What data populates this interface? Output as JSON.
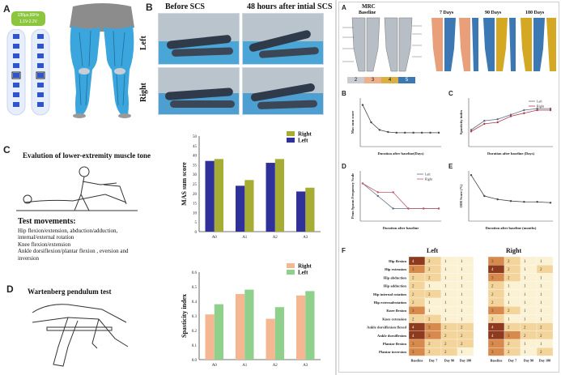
{
  "panels": {
    "a_left": {
      "label": "A",
      "device_text_1": "130µs,60Hz",
      "device_text_2": "1.1V-2.2V"
    },
    "b": {
      "label": "B",
      "before": "Before  SCS",
      "after": "48 hours after intial SCS",
      "left_row": "Left",
      "right_row": "Right"
    },
    "c": {
      "label": "C",
      "title": "Evalution of lower-extremity muscle tone",
      "test_movements_title": "Test movements:",
      "movements": [
        "Hip  flexion/extension, abduction/adduction,",
        "internal/external rotation",
        "Knee  flexion/extension",
        "Ankle dorsiflexion/plantar flexion , eversion and",
        "inversion"
      ]
    },
    "d": {
      "label": "D",
      "title": "Wartenberg pendulum test"
    },
    "right_figure": {
      "label_a": "A",
      "label_b": "B",
      "label_c": "C",
      "label_d": "D",
      "label_e": "E",
      "label_f": "F",
      "mrc_title": "MRC",
      "mrc_times": [
        "Baseline",
        "7 Days",
        "90 Days",
        "180 Days"
      ],
      "mrc_scale": [
        "2",
        "3",
        "4",
        "5"
      ],
      "b_ylabel": "Mas sum score",
      "b_xlabel": "Duration after baseline(Days)",
      "c_ylabel": "Spasticity index",
      "c_xlabel": "Duration after baseline (Days)",
      "c_legend": [
        "Left",
        "Right"
      ],
      "d_ylabel": "Penn Spasm Frequency Scale",
      "d_xlabel": "Duration after baseline",
      "d_legend": [
        "Left",
        "Right"
      ],
      "e_ylabel": "ODI Score (%)",
      "e_xlabel": "Duration after baseline (months)",
      "f_left": "Left",
      "f_right": "Right",
      "f_rows": [
        "Hip flexion",
        "Hip extension",
        "Hip abduction",
        "Hip adduction",
        "Hip internal rotation",
        "Hip externalrotation",
        "Knee flexion",
        "Knee extension",
        "Ankle dorsiflexion flexed",
        "Ankle dorsiflexion",
        "Plantar flexion",
        "Plantar inversion"
      ],
      "f_cols": [
        "Baseline",
        "Day 7",
        "Day 90",
        "Day 180"
      ],
      "f_left_values": [
        [
          4,
          2,
          1,
          1
        ],
        [
          3,
          2,
          1,
          1
        ],
        [
          2,
          2,
          1,
          1
        ],
        [
          2,
          1,
          1,
          1
        ],
        [
          2,
          2,
          1,
          1
        ],
        [
          2,
          1,
          1,
          1
        ],
        [
          3,
          1,
          1,
          1
        ],
        [
          2,
          2,
          1,
          1
        ],
        [
          4,
          3,
          2,
          2
        ],
        [
          4,
          3,
          2,
          2
        ],
        [
          3,
          2,
          2,
          2
        ],
        [
          3,
          2,
          2,
          1
        ]
      ],
      "f_right_values": [
        [
          3,
          2,
          1,
          1
        ],
        [
          4,
          2,
          1,
          2
        ],
        [
          3,
          2,
          1,
          1
        ],
        [
          2,
          1,
          1,
          1
        ],
        [
          2,
          1,
          1,
          1
        ],
        [
          2,
          1,
          1,
          1
        ],
        [
          3,
          2,
          1,
          1
        ],
        [
          2,
          1,
          1,
          1
        ],
        [
          4,
          2,
          2,
          2
        ],
        [
          4,
          3,
          2,
          2
        ],
        [
          3,
          2,
          1,
          1
        ],
        [
          3,
          2,
          1,
          2
        ]
      ]
    }
  },
  "colors": {
    "right_series_c": "#a7ad34",
    "left_series_c": "#30309a",
    "right_series_d": "#f4b791",
    "left_series_d": "#8fd18c",
    "muscle_blue": "#3aa6dd",
    "device_green": "#8cc63f"
  },
  "chart_data": [
    {
      "type": "bar",
      "panel": "C",
      "categories": [
        "A0",
        "A1",
        "A2",
        "A3"
      ],
      "series": [
        {
          "name": "Right",
          "values": [
            38,
            27,
            38,
            23
          ]
        },
        {
          "name": "Left",
          "values": [
            37,
            24,
            36,
            21
          ]
        }
      ],
      "ylabel": "MAS sum score",
      "ylim": [
        0,
        50
      ],
      "yticks": [
        "0",
        "5",
        "10",
        "15",
        "20",
        "25",
        "30",
        "35",
        "40",
        "45",
        "50"
      ],
      "legend": "top-right"
    },
    {
      "type": "bar",
      "panel": "D",
      "categories": [
        "A0",
        "A1",
        "A2",
        "A3"
      ],
      "series": [
        {
          "name": "Right",
          "values": [
            0.31,
            0.45,
            0.28,
            0.44
          ]
        },
        {
          "name": "Left",
          "values": [
            0.38,
            0.48,
            0.36,
            0.47
          ]
        }
      ],
      "ylabel": "Spasticity index",
      "ylim": [
        0,
        0.6
      ],
      "legend": "top-right"
    },
    {
      "type": "line",
      "panel": "right-B",
      "series": [
        {
          "values": [
            6,
            3.5,
            2.4,
            2.1,
            2.0,
            2.0,
            2.0,
            2.0,
            2.0,
            2.0
          ]
        }
      ]
    },
    {
      "type": "line",
      "panel": "right-C",
      "series": [
        {
          "name": "Left",
          "values": [
            0.75,
            1.05,
            1.1,
            1.25,
            1.4,
            1.45,
            1.45
          ]
        },
        {
          "name": "Right",
          "values": [
            0.7,
            0.95,
            1.0,
            1.2,
            1.3,
            1.4,
            1.4
          ]
        }
      ]
    },
    {
      "type": "line",
      "panel": "right-D",
      "series": [
        {
          "name": "Left",
          "values": [
            3,
            2,
            1,
            1,
            1,
            1
          ]
        },
        {
          "name": "Right",
          "values": [
            3,
            2.3,
            2.3,
            1,
            1,
            1
          ]
        }
      ]
    },
    {
      "type": "line",
      "panel": "right-E",
      "series": [
        {
          "values": [
            95,
            70,
            66,
            64,
            63,
            63,
            62
          ]
        }
      ]
    }
  ]
}
